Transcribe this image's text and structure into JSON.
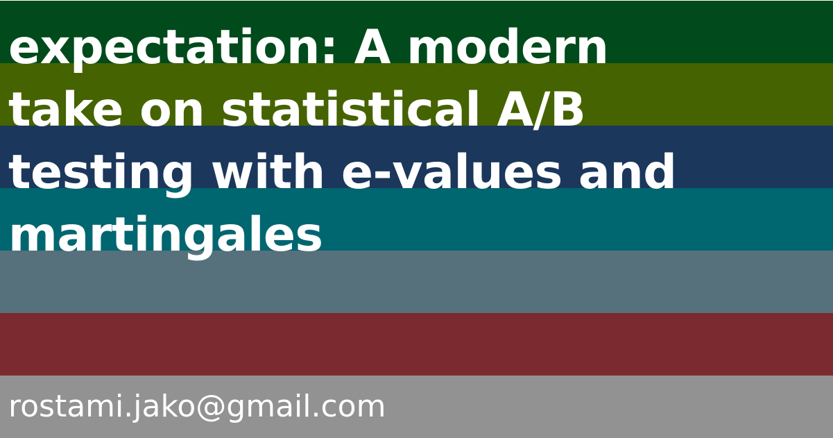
{
  "title_lines": [
    "expectation: A modern",
    "take on statistical A/B",
    "testing with e-values and",
    "martingales"
  ],
  "email": "rostami.jako@gmail.com",
  "stripe_colors": [
    "#004a1b",
    "#456300",
    "#1b375b",
    "#006670",
    "#56717c",
    "#7b2a2f",
    "#929292"
  ]
}
